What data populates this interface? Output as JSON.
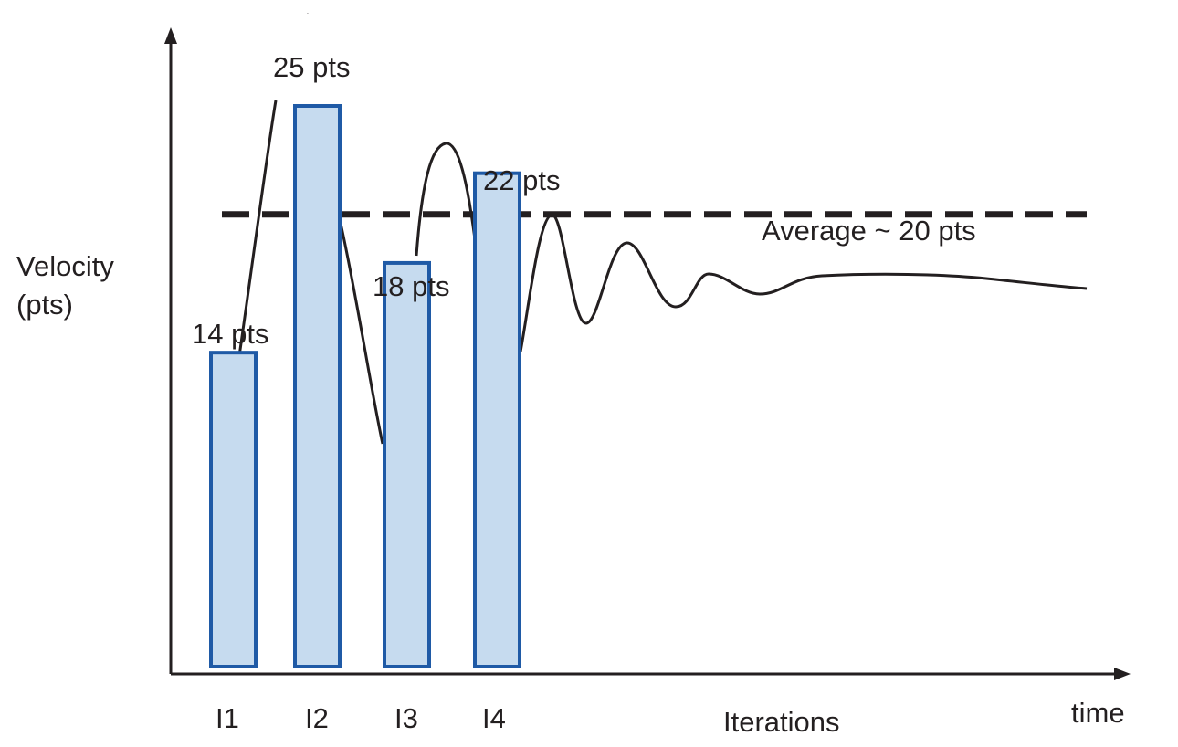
{
  "chart_data": {
    "type": "bar",
    "categories": [
      "I1",
      "I2",
      "I3",
      "I4"
    ],
    "values": [
      14,
      25,
      18,
      22
    ],
    "value_labels": [
      "14 pts",
      "25 pts",
      "18 pts",
      "22 pts"
    ],
    "ylabel_lines": [
      "Velocity",
      "(pts)"
    ],
    "xlabel": "Iterations",
    "xaxis_end_label": "time",
    "average": {
      "value": 20,
      "label": "Average ~ 20 pts"
    },
    "ylim": [
      0,
      27
    ],
    "grid": false,
    "colors": {
      "bar_fill": "#c6dbef",
      "bar_stroke": "#1f5aa6",
      "line": "#231f20"
    }
  }
}
